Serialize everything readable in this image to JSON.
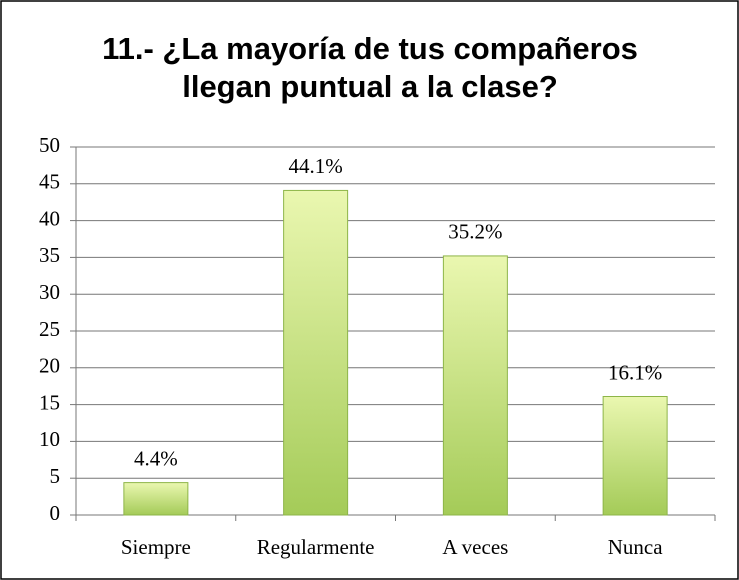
{
  "chart_data": {
    "type": "bar",
    "title": "11.- ¿La mayoría de tus compañeros llegan puntual a la clase?",
    "categories": [
      "Siempre",
      "Regularmente",
      "A veces",
      "Nunca"
    ],
    "values": [
      4.4,
      44.1,
      35.2,
      16.1
    ],
    "value_labels": [
      "4.4%",
      "44.1%",
      "35.2%",
      "16.1%"
    ],
    "color": "#b8dc6a",
    "ylim": [
      0,
      50
    ],
    "yticks": [
      0,
      5,
      10,
      15,
      20,
      25,
      30,
      35,
      40,
      45,
      50
    ],
    "grid": true
  }
}
